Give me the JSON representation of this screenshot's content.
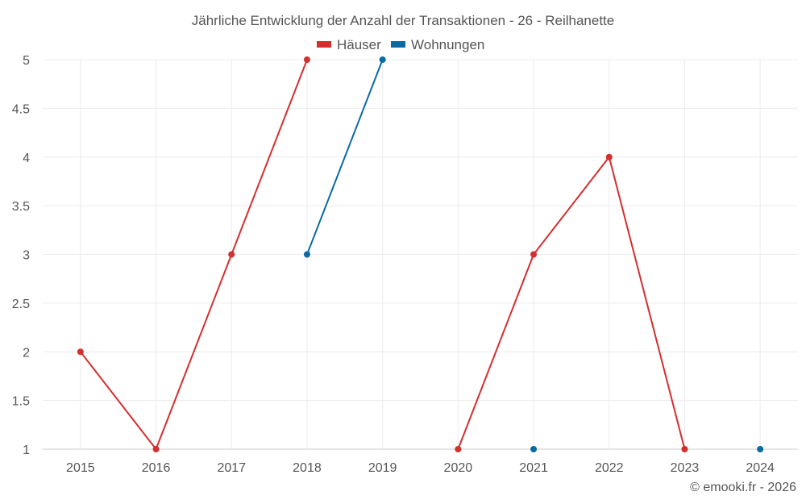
{
  "chart_data": {
    "type": "line",
    "title": "Jährliche Entwicklung der Anzahl der Transaktionen - 26 - Reilhanette",
    "x": [
      "2015",
      "2016",
      "2017",
      "2018",
      "2019",
      "2020",
      "2021",
      "2022",
      "2023",
      "2024"
    ],
    "series": [
      {
        "name": "Häuser",
        "color": "#d32f2f",
        "values": [
          2,
          1,
          3,
          5,
          null,
          1,
          3,
          4,
          1,
          null
        ]
      },
      {
        "name": "Wohnungen",
        "color": "#0b6aa2",
        "values": [
          null,
          null,
          null,
          3,
          5,
          null,
          1,
          null,
          null,
          1
        ]
      }
    ],
    "ylim": [
      1,
      5
    ],
    "yticks": [
      "1",
      "1.5",
      "2",
      "2.5",
      "3",
      "3.5",
      "4",
      "4.5",
      "5"
    ],
    "grid": true,
    "legend_position": "top-center"
  },
  "credit": "© emooki.fr - 2026"
}
